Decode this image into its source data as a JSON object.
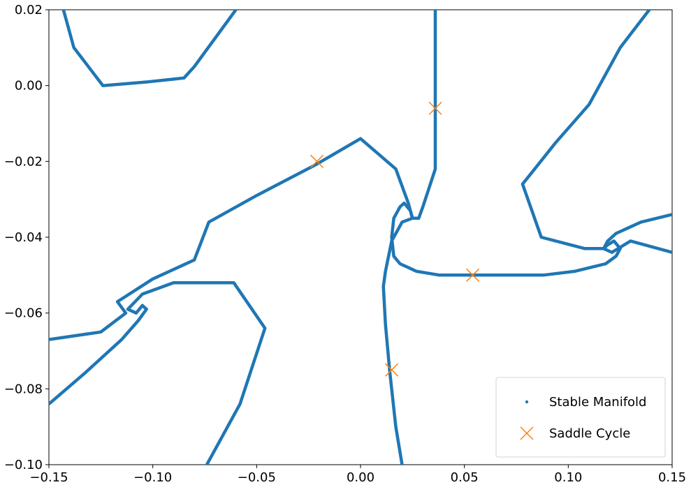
{
  "chart_data": {
    "type": "scatter",
    "title": "",
    "xlabel": "",
    "ylabel": "",
    "xlim": [
      -0.15,
      0.15
    ],
    "ylim": [
      -0.1,
      0.02
    ],
    "xticks": [
      -0.15,
      -0.1,
      -0.05,
      0.0,
      0.05,
      0.1,
      0.15
    ],
    "yticks": [
      0.02,
      0.0,
      -0.02,
      -0.04,
      -0.06,
      -0.08,
      -0.1
    ],
    "xtick_labels": [
      "−0.15",
      "−0.10",
      "−0.05",
      "0.00",
      "0.05",
      "0.10",
      "0.15"
    ],
    "ytick_labels": [
      "0.02",
      "0.00",
      "−0.02",
      "−0.04",
      "−0.06",
      "−0.08",
      "−0.10"
    ],
    "grid": false,
    "legend_position": "bottom-right",
    "series": [
      {
        "name": "Stable Manifold",
        "marker": "point",
        "color": "#1f77b4",
        "curves": [
          [
            [
              -0.143,
              0.02
            ],
            [
              -0.138,
              0.01
            ],
            [
              -0.124,
              0.0
            ],
            [
              -0.102,
              0.001
            ],
            [
              -0.085,
              0.002
            ],
            [
              -0.08,
              0.005
            ],
            [
              -0.06,
              0.02
            ]
          ],
          [
            [
              0.036,
              0.02
            ],
            [
              0.036,
              -0.006
            ],
            [
              0.036,
              -0.022
            ],
            [
              0.033,
              -0.027
            ],
            [
              0.03,
              -0.032
            ],
            [
              0.028,
              -0.035
            ],
            [
              0.025,
              -0.035
            ],
            [
              0.024,
              -0.033
            ],
            [
              0.021,
              -0.031
            ],
            [
              0.019,
              -0.032
            ],
            [
              0.016,
              -0.035
            ],
            [
              0.015,
              -0.04
            ],
            [
              0.016,
              -0.045
            ],
            [
              0.019,
              -0.047
            ],
            [
              0.027,
              -0.049
            ],
            [
              0.038,
              -0.05
            ],
            [
              0.054,
              -0.05
            ],
            [
              0.07,
              -0.05
            ],
            [
              0.088,
              -0.05
            ],
            [
              0.103,
              -0.049
            ],
            [
              0.118,
              -0.047
            ],
            [
              0.123,
              -0.045
            ],
            [
              0.125,
              -0.043
            ],
            [
              0.122,
              -0.041
            ],
            [
              0.119,
              -0.042
            ],
            [
              0.117,
              -0.043
            ],
            [
              0.121,
              -0.044
            ],
            [
              0.13,
              -0.041
            ],
            [
              0.15,
              -0.044
            ]
          ],
          [
            [
              0.139,
              0.02
            ],
            [
              0.125,
              0.01
            ],
            [
              0.11,
              -0.005
            ],
            [
              0.094,
              -0.015
            ],
            [
              0.078,
              -0.026
            ],
            [
              0.087,
              -0.04
            ],
            [
              0.108,
              -0.043
            ],
            [
              0.117,
              -0.043
            ],
            [
              0.119,
              -0.041
            ],
            [
              0.123,
              -0.039
            ],
            [
              0.135,
              -0.036
            ],
            [
              0.15,
              -0.034
            ]
          ],
          [
            [
              -0.15,
              -0.067
            ],
            [
              -0.125,
              -0.065
            ],
            [
              -0.113,
              -0.06
            ],
            [
              -0.117,
              -0.057
            ],
            [
              -0.1,
              -0.051
            ],
            [
              -0.08,
              -0.046
            ],
            [
              -0.073,
              -0.036
            ],
            [
              -0.05,
              -0.029
            ],
            [
              -0.022,
              -0.021
            ],
            [
              0.0,
              -0.014
            ],
            [
              0.017,
              -0.022
            ],
            [
              0.023,
              -0.031
            ],
            [
              0.025,
              -0.035
            ],
            [
              0.02,
              -0.036
            ],
            [
              0.015,
              -0.041
            ],
            [
              0.012,
              -0.049
            ],
            [
              0.011,
              -0.053
            ],
            [
              0.012,
              -0.063
            ],
            [
              0.014,
              -0.075
            ],
            [
              0.017,
              -0.09
            ],
            [
              0.02,
              -0.1
            ]
          ],
          [
            [
              -0.15,
              -0.084
            ],
            [
              -0.133,
              -0.076
            ],
            [
              -0.115,
              -0.067
            ],
            [
              -0.107,
              -0.062
            ],
            [
              -0.103,
              -0.059
            ],
            [
              -0.105,
              -0.058
            ],
            [
              -0.108,
              -0.06
            ],
            [
              -0.112,
              -0.059
            ],
            [
              -0.105,
              -0.055
            ],
            [
              -0.09,
              -0.052
            ],
            [
              -0.08,
              -0.052
            ],
            [
              -0.061,
              -0.052
            ],
            [
              -0.046,
              -0.064
            ],
            [
              -0.058,
              -0.084
            ],
            [
              -0.074,
              -0.1
            ]
          ]
        ]
      },
      {
        "name": "Saddle Cycle",
        "marker": "x",
        "color": "#ff7f0e",
        "points": [
          [
            -0.021,
            -0.02
          ],
          [
            0.036,
            -0.006
          ],
          [
            0.054,
            -0.05
          ],
          [
            0.015,
            -0.075
          ]
        ]
      }
    ],
    "legend": {
      "entries": [
        "Stable Manifold",
        "Saddle Cycle"
      ]
    }
  }
}
